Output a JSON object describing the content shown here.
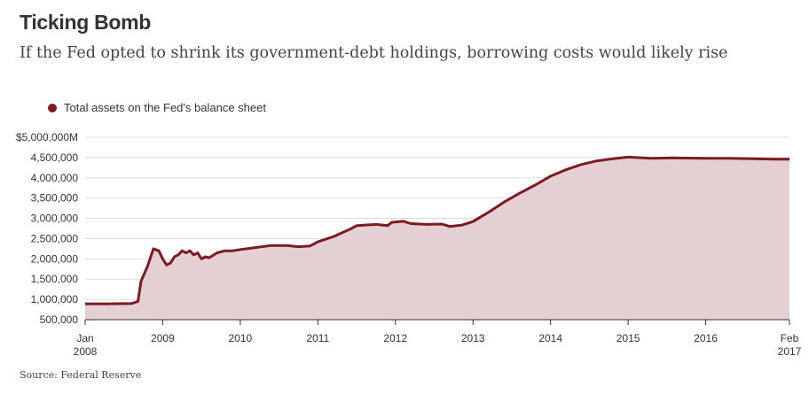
{
  "title": "Ticking Bomb",
  "subtitle": "If the Fed opted to shrink its government-debt holdings, borrowing costs would likely rise",
  "source": "Source: Federal Reserve",
  "legend": {
    "label": "Total assets on the Fed's balance sheet",
    "color": "#7a1c22"
  },
  "colors": {
    "line": "#7a1c22",
    "fill": "#e4d0d2",
    "grid": "#dddddd",
    "axis": "#333333"
  },
  "chart_data": {
    "type": "area",
    "title": "Ticking Bomb",
    "subtitle": "If the Fed opted to shrink its government-debt holdings, borrowing costs would likely rise",
    "xlabel": "",
    "ylabel": "",
    "ylim": [
      500000,
      5000000
    ],
    "xlim": [
      2008.0,
      2017.08
    ],
    "y_ticks": [
      {
        "value": 5000000,
        "label": "$5,000,000M"
      },
      {
        "value": 4500000,
        "label": "4,500,000"
      },
      {
        "value": 4000000,
        "label": "4,000,000"
      },
      {
        "value": 3500000,
        "label": "3,500,000"
      },
      {
        "value": 3000000,
        "label": "3,000,000"
      },
      {
        "value": 2500000,
        "label": "2,500,000"
      },
      {
        "value": 2000000,
        "label": "2,000,000"
      },
      {
        "value": 1500000,
        "label": "1,500,000"
      },
      {
        "value": 1000000,
        "label": "1,000,000"
      },
      {
        "value": 500000,
        "label": "500,000"
      }
    ],
    "x_ticks": [
      {
        "value": 2008.0,
        "line1": "Jan",
        "line2": "2008"
      },
      {
        "value": 2009.0,
        "line1": "2009",
        "line2": ""
      },
      {
        "value": 2010.0,
        "line1": "2010",
        "line2": ""
      },
      {
        "value": 2011.0,
        "line1": "2011",
        "line2": ""
      },
      {
        "value": 2012.0,
        "line1": "2012",
        "line2": ""
      },
      {
        "value": 2013.0,
        "line1": "2013",
        "line2": ""
      },
      {
        "value": 2014.0,
        "line1": "2014",
        "line2": ""
      },
      {
        "value": 2015.0,
        "line1": "2015",
        "line2": ""
      },
      {
        "value": 2016.0,
        "line1": "2016",
        "line2": ""
      },
      {
        "value": 2017.08,
        "line1": "Feb",
        "line2": "2017"
      }
    ],
    "grid": true,
    "legend_position": "top-left",
    "series": [
      {
        "name": "Total assets on the Fed's balance sheet",
        "x": [
          2008.0,
          2008.3,
          2008.6,
          2008.68,
          2008.72,
          2008.8,
          2008.88,
          2008.95,
          2009.0,
          2009.05,
          2009.1,
          2009.15,
          2009.2,
          2009.25,
          2009.3,
          2009.35,
          2009.4,
          2009.45,
          2009.5,
          2009.55,
          2009.6,
          2009.7,
          2009.8,
          2009.9,
          2010.0,
          2010.2,
          2010.4,
          2010.6,
          2010.75,
          2010.9,
          2011.0,
          2011.2,
          2011.4,
          2011.5,
          2011.75,
          2011.9,
          2011.95,
          2012.1,
          2012.2,
          2012.4,
          2012.6,
          2012.7,
          2012.85,
          2013.0,
          2013.2,
          2013.4,
          2013.6,
          2013.8,
          2014.0,
          2014.2,
          2014.4,
          2014.6,
          2014.8,
          2015.0,
          2015.3,
          2015.6,
          2016.0,
          2016.3,
          2016.6,
          2016.9,
          2017.08
        ],
        "values": [
          890000,
          890000,
          900000,
          950000,
          1450000,
          1800000,
          2250000,
          2200000,
          2000000,
          1850000,
          1900000,
          2050000,
          2100000,
          2200000,
          2150000,
          2200000,
          2100000,
          2150000,
          2000000,
          2050000,
          2030000,
          2150000,
          2200000,
          2200000,
          2230000,
          2280000,
          2330000,
          2330000,
          2300000,
          2320000,
          2420000,
          2550000,
          2720000,
          2820000,
          2850000,
          2820000,
          2900000,
          2930000,
          2870000,
          2850000,
          2860000,
          2800000,
          2830000,
          2920000,
          3150000,
          3400000,
          3620000,
          3820000,
          4040000,
          4200000,
          4330000,
          4420000,
          4470000,
          4510000,
          4480000,
          4490000,
          4480000,
          4480000,
          4470000,
          4460000,
          4460000
        ]
      }
    ]
  }
}
